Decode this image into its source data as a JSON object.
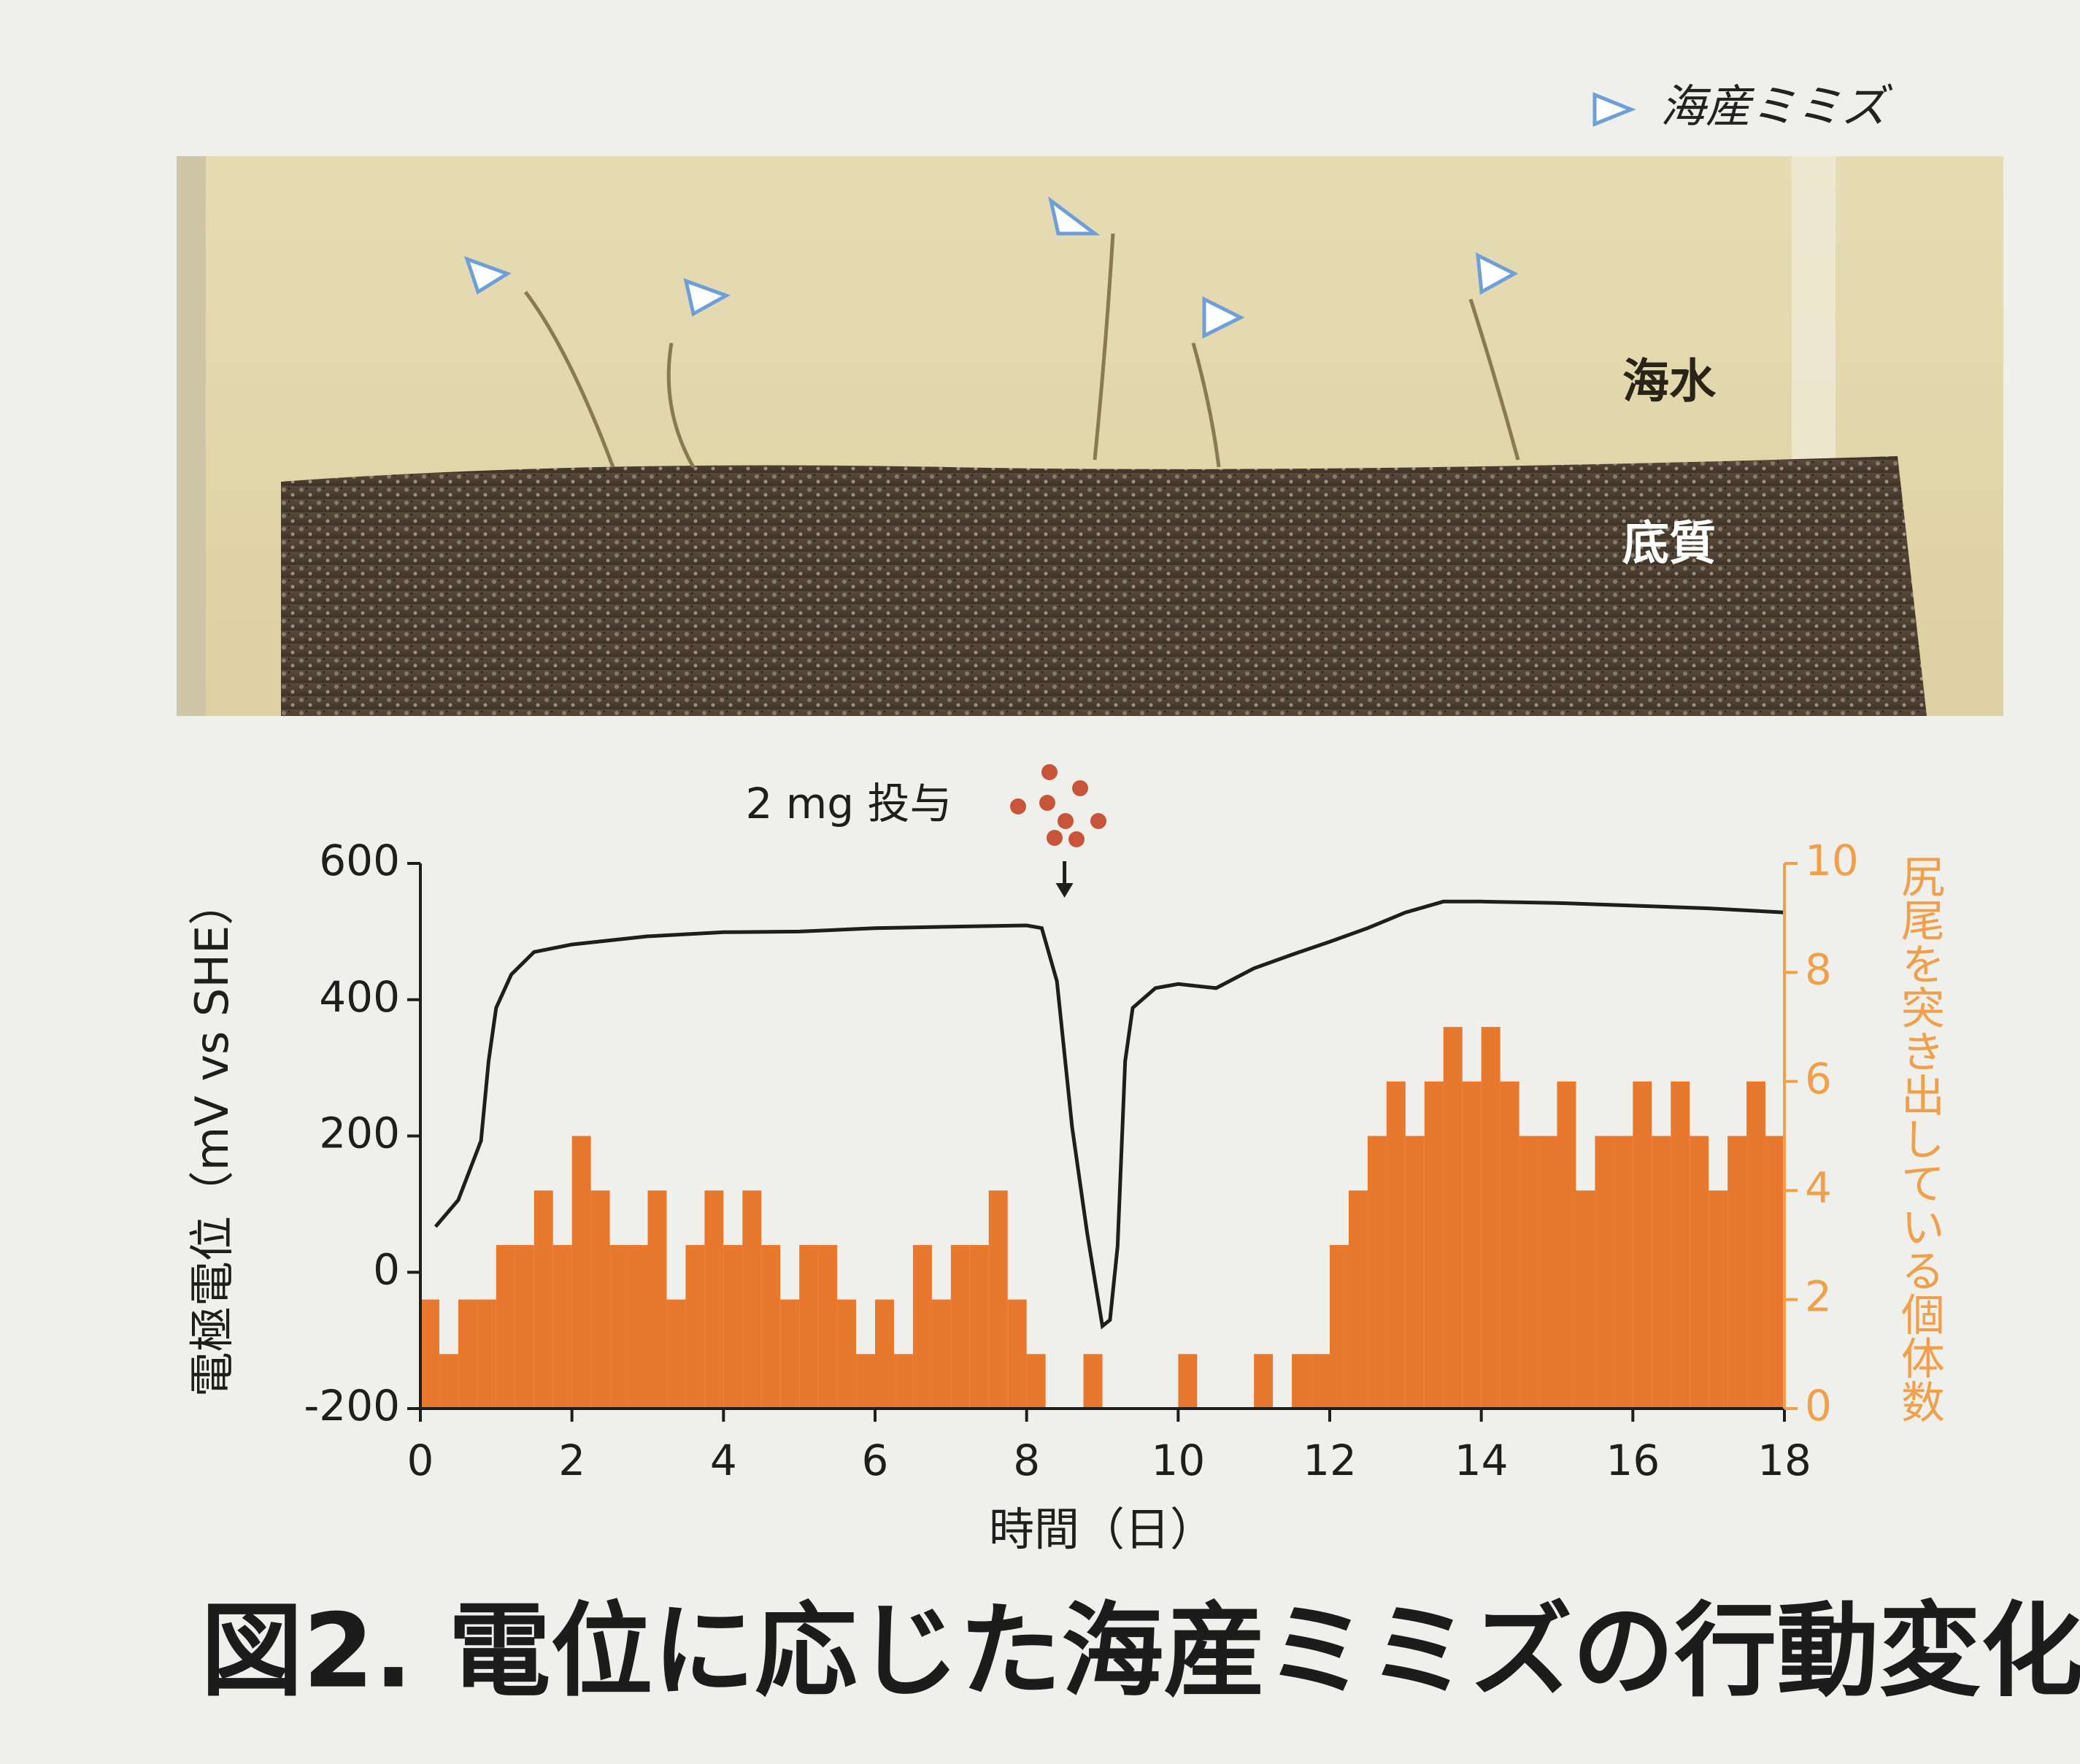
{
  "photo": {
    "legend": "海産ミミズ",
    "labels": [
      "海水",
      "底質"
    ]
  },
  "chart_data": {
    "type": "combo",
    "annotation": {
      "text": "2 mg 投与",
      "x": 8.5
    },
    "xlabel": "時間（日）",
    "ylabel": "電極電位（mV vs SHE）",
    "y2label": "尻尾を突き出している個体数",
    "xlim": [
      0,
      18
    ],
    "xticks": [
      0,
      2,
      4,
      6,
      8,
      10,
      12,
      14,
      16,
      18
    ],
    "ylim": [
      -200,
      600
    ],
    "yticks": [
      -200,
      0,
      200,
      400,
      600
    ],
    "y2lim": [
      0,
      10
    ],
    "y2ticks": [
      0,
      2,
      4,
      6,
      8,
      10
    ],
    "line": {
      "color": "#1e1e1e",
      "x": [
        0.2,
        0.5,
        0.8,
        0.9,
        1.0,
        1.2,
        1.5,
        2,
        3,
        4,
        5,
        6,
        7,
        8,
        8.2,
        8.4,
        8.6,
        8.8,
        9.0,
        9.1,
        9.2,
        9.3,
        9.4,
        9.7,
        10,
        10.5,
        11,
        11.5,
        12,
        12.5,
        13,
        13.5,
        14,
        15,
        16,
        17,
        18
      ],
      "y": [
        67,
        106,
        193,
        310,
        388,
        437,
        470,
        481,
        493,
        499,
        500,
        505,
        507,
        509,
        505,
        427,
        213,
        57,
        -79,
        -70,
        38,
        310,
        388,
        417,
        423,
        417,
        446,
        466,
        485,
        505,
        528,
        544,
        544,
        542,
        538,
        534,
        528
      ]
    },
    "histogram": {
      "color": "#e8782e",
      "axis": "y2",
      "bins": [
        0,
        0.25,
        0.5,
        0.75,
        1,
        1.25,
        1.5,
        1.75,
        2,
        2.25,
        2.5,
        2.75,
        3,
        3.25,
        3.5,
        3.75,
        4,
        4.25,
        4.5,
        4.75,
        5,
        5.25,
        5.5,
        5.75,
        6,
        6.25,
        6.5,
        6.75,
        7,
        7.25,
        7.5,
        7.75,
        8,
        8.25,
        8.5,
        8.75,
        9,
        9.25,
        9.5,
        9.75,
        10,
        10.25,
        10.5,
        10.75,
        11,
        11.25,
        11.5,
        11.75,
        12,
        12.25,
        12.5,
        12.75,
        13,
        13.25,
        13.5,
        13.75,
        14,
        14.25,
        14.5,
        14.75,
        15,
        15.25,
        15.5,
        15.75,
        16,
        16.25,
        16.5,
        16.75,
        17,
        17.25,
        17.5,
        17.75,
        18
      ],
      "counts": [
        2,
        1,
        2,
        2,
        3,
        3,
        4,
        3,
        5,
        4,
        3,
        3,
        4,
        2,
        3,
        4,
        3,
        4,
        3,
        2,
        3,
        3,
        2,
        1,
        2,
        1,
        3,
        2,
        3,
        3,
        4,
        2,
        1,
        0,
        0,
        1,
        0,
        0,
        0,
        0,
        1,
        0,
        0,
        0,
        1,
        0,
        1,
        1,
        3,
        4,
        5,
        6,
        5,
        6,
        7,
        6,
        7,
        6,
        5,
        5,
        6,
        4,
        5,
        5,
        6,
        5,
        6,
        5,
        4,
        5,
        6,
        5
      ]
    },
    "axis_colors": {
      "y": "#1e1e1e",
      "y2": "#f0a04a"
    }
  },
  "figure_caption": "図2.  電位に応じた海産ミミズの行動変化"
}
